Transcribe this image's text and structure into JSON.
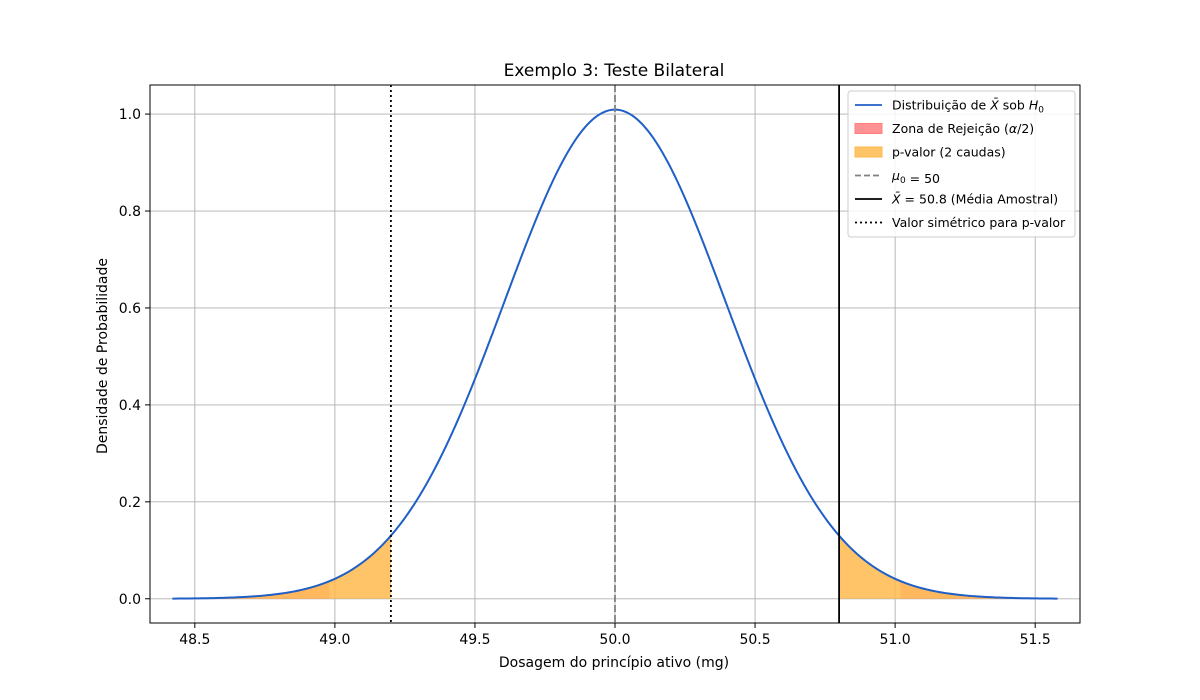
{
  "chart_data": {
    "type": "line",
    "title": "Exemplo 3: Teste Bilateral",
    "xlabel": "Dosagem do princípio ativo (mg)",
    "ylabel": "Densidade de Probabilidade",
    "xlim": [
      48.34,
      51.66
    ],
    "ylim": [
      -0.05,
      1.06
    ],
    "xticks": [
      48.5,
      49.0,
      49.5,
      50.0,
      50.5,
      51.0,
      51.5
    ],
    "xtick_labels": [
      "48.5",
      "49.0",
      "49.5",
      "50.0",
      "50.5",
      "51.0",
      "51.5"
    ],
    "yticks": [
      0.0,
      0.2,
      0.4,
      0.6,
      0.8,
      1.0
    ],
    "ytick_labels": [
      "0.0",
      "0.2",
      "0.4",
      "0.6",
      "0.8",
      "1.0"
    ],
    "grid": true,
    "legend_position": "top-right",
    "distribution": {
      "mean": 50.0,
      "sd": 0.3953,
      "x_range": [
        48.42,
        51.58
      ],
      "color": "#1f5fc6"
    },
    "rejection_zone": {
      "lower_below": 48.98,
      "upper_above": 51.02,
      "color": "#ff7f7f"
    },
    "p_value_area": {
      "lower_below": 49.2,
      "upper_above": 50.8,
      "color": "#ffb84d"
    },
    "lines": {
      "mu0": 50.0,
      "sample_mean": 50.8,
      "symmetric_value": 49.2
    },
    "legend": [
      {
        "type": "line",
        "style": "solid",
        "color": "#1f5fc6",
        "parts": [
          {
            "t": "Distribuição de "
          },
          {
            "t": "X̄",
            "i": true
          },
          {
            "t": " sob "
          },
          {
            "t": "H",
            "i": true
          },
          {
            "t": "0",
            "sub": true
          }
        ]
      },
      {
        "type": "patch",
        "color": "#ff7f7f",
        "parts": [
          {
            "t": "Zona de Rejeição ("
          },
          {
            "t": "α",
            "i": true
          },
          {
            "t": "/2)"
          }
        ]
      },
      {
        "type": "patch",
        "color": "#ffb84d",
        "parts": [
          {
            "t": "p-valor (2 caudas)"
          }
        ]
      },
      {
        "type": "line",
        "style": "dashed",
        "color": "#808080",
        "parts": [
          {
            "t": "μ",
            "i": true
          },
          {
            "t": "0",
            "sub": true
          },
          {
            "t": " = 50"
          }
        ]
      },
      {
        "type": "line",
        "style": "solid",
        "color": "#000000",
        "parts": [
          {
            "t": "X̄",
            "i": true
          },
          {
            "t": " = 50.8 (Média Amostral)"
          }
        ]
      },
      {
        "type": "line",
        "style": "dotted",
        "color": "#000000",
        "parts": [
          {
            "t": "Valor simétrico para p-valor"
          }
        ]
      }
    ]
  }
}
